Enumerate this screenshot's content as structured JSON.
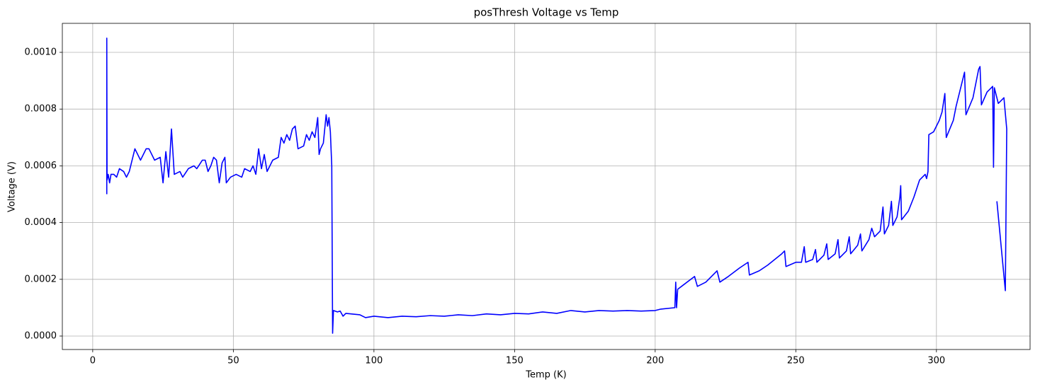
{
  "chart_data": {
    "type": "line",
    "title": "posThresh Voltage vs Temp",
    "x_label": "Temp (K)",
    "y_label": "Voltage (V)",
    "xlim": [
      -10.8,
      333.3
    ],
    "ylim": [
      -4.74e-05,
      0.0011022
    ],
    "xticks": [
      0,
      50,
      100,
      150,
      200,
      250,
      300
    ],
    "yticks": [
      {
        "value": 0,
        "label": "0.0000"
      },
      {
        "value": 0.0002,
        "label": "0.0002"
      },
      {
        "value": 0.0004,
        "label": "0.0004"
      },
      {
        "value": 0.0006,
        "label": "0.0006"
      },
      {
        "value": 0.0008,
        "label": "0.0008"
      },
      {
        "value": 0.001,
        "label": "0.0010"
      }
    ],
    "grid": true,
    "series": [
      {
        "name": "posThresh",
        "color": "#0000ff",
        "x": [
          5,
          5,
          5.1,
          5.5,
          6,
          6.5,
          7.5,
          8.5,
          9.5,
          11,
          12,
          13,
          15,
          17,
          19,
          20,
          22,
          24,
          25,
          26,
          27,
          28,
          29,
          31,
          32,
          34,
          36,
          37,
          39,
          40,
          41,
          42,
          43,
          44,
          45,
          46,
          47,
          47.5,
          49,
          51,
          53,
          54,
          56,
          57,
          58,
          59,
          60,
          61,
          62,
          64,
          66,
          67,
          68,
          69,
          70,
          71,
          72,
          73,
          75,
          76,
          77,
          78,
          79,
          80,
          80.5,
          81,
          82,
          83,
          83.5,
          84,
          84.5,
          85,
          85.3,
          85.6,
          87,
          88,
          89,
          90,
          95,
          97,
          100,
          105,
          110,
          115,
          120,
          125,
          130,
          135,
          140,
          145,
          150,
          155,
          160,
          165,
          170,
          175,
          180,
          185,
          190,
          195,
          200,
          202,
          207,
          207.3,
          207.6,
          208,
          210,
          214,
          215,
          218,
          222,
          223,
          226,
          230,
          233,
          233.5,
          237,
          240,
          245,
          246,
          246.5,
          250,
          252,
          253,
          253.5,
          256,
          257,
          257.5,
          260,
          261,
          261.5,
          264,
          265,
          265.5,
          268,
          269,
          269.5,
          272,
          273,
          273.5,
          276,
          277,
          278,
          280,
          281,
          281.5,
          283,
          284,
          284.5,
          286,
          287,
          287.3,
          287.6,
          290,
          292,
          294,
          296,
          296.5,
          297,
          297.3,
          299,
          301,
          302,
          303,
          303.5,
          306,
          307,
          309,
          310,
          310.5,
          313,
          315,
          315.5,
          316,
          318,
          320,
          320.3,
          320.6,
          322,
          324,
          325,
          324.5,
          321.5
        ],
        "values": [
          0.0005,
          0.00105,
          0.00055,
          0.00057,
          0.00054,
          0.00057,
          0.00057,
          0.00056,
          0.00059,
          0.00058,
          0.00056,
          0.00058,
          0.00066,
          0.00062,
          0.00066,
          0.00066,
          0.00062,
          0.00063,
          0.00054,
          0.00065,
          0.00056,
          0.00073,
          0.00057,
          0.00058,
          0.00056,
          0.00059,
          0.0006,
          0.00059,
          0.00062,
          0.00062,
          0.00058,
          0.0006,
          0.00063,
          0.00062,
          0.00054,
          0.00061,
          0.00063,
          0.00054,
          0.00056,
          0.00057,
          0.00056,
          0.00059,
          0.00058,
          0.0006,
          0.00057,
          0.00066,
          0.00059,
          0.00064,
          0.00058,
          0.00062,
          0.00063,
          0.0007,
          0.00068,
          0.00071,
          0.00069,
          0.00073,
          0.00074,
          0.00066,
          0.00067,
          0.00071,
          0.00069,
          0.00072,
          0.0007,
          0.00077,
          0.00064,
          0.00066,
          0.00068,
          0.00078,
          0.00074,
          0.00077,
          0.00072,
          0.0006,
          1e-05,
          9e-05,
          8.5e-05,
          8.8e-05,
          7e-05,
          8e-05,
          7.5e-05,
          6.5e-05,
          7e-05,
          6.5e-05,
          7e-05,
          6.8e-05,
          7.2e-05,
          7e-05,
          7.5e-05,
          7.2e-05,
          7.8e-05,
          7.5e-05,
          8e-05,
          7.8e-05,
          8.5e-05,
          8e-05,
          9e-05,
          8.5e-05,
          9e-05,
          8.8e-05,
          9e-05,
          8.8e-05,
          9e-05,
          9.5e-05,
          0.0001,
          0.00019,
          0.0001,
          0.000165,
          0.00018,
          0.00021,
          0.000175,
          0.00019,
          0.00023,
          0.00019,
          0.00021,
          0.00024,
          0.00026,
          0.000215,
          0.00023,
          0.00025,
          0.00029,
          0.0003,
          0.000245,
          0.00026,
          0.00026,
          0.000315,
          0.00026,
          0.00027,
          0.000305,
          0.00026,
          0.000285,
          0.000325,
          0.00027,
          0.00029,
          0.00034,
          0.000275,
          0.0003,
          0.00035,
          0.00029,
          0.00032,
          0.00036,
          0.0003,
          0.00034,
          0.00038,
          0.00035,
          0.00037,
          0.000455,
          0.00036,
          0.00039,
          0.000475,
          0.00039,
          0.00042,
          0.00049,
          0.00053,
          0.00041,
          0.00044,
          0.00049,
          0.00055,
          0.00057,
          0.000555,
          0.00058,
          0.00071,
          0.00072,
          0.00076,
          0.00079,
          0.000855,
          0.0007,
          0.00076,
          0.00081,
          0.00089,
          0.00093,
          0.00078,
          0.00084,
          0.00094,
          0.00095,
          0.000815,
          0.00086,
          0.00088,
          0.000595,
          0.000875,
          0.00082,
          0.00084,
          0.00073,
          0.00016,
          0.000475
        ]
      }
    ]
  }
}
